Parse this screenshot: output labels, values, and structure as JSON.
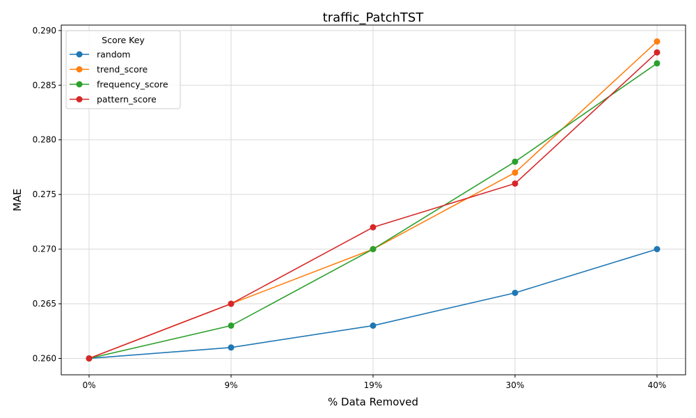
{
  "chart_data": {
    "type": "line",
    "title": "traffic_PatchTST",
    "xlabel": "% Data Removed",
    "ylabel": "MAE",
    "categories": [
      "0%",
      "9%",
      "19%",
      "30%",
      "40%"
    ],
    "ylim": [
      0.2585,
      0.2905
    ],
    "yticks": [
      "0.260",
      "0.265",
      "0.270",
      "0.275",
      "0.280",
      "0.285",
      "0.290"
    ],
    "ytick_values": [
      0.26,
      0.265,
      0.27,
      0.275,
      0.28,
      0.285,
      0.29
    ],
    "grid": true,
    "legend": {
      "title": "Score Key",
      "placement": "top-left"
    },
    "series": [
      {
        "name": "random",
        "color": "#1f77b4",
        "values": [
          0.26,
          0.261,
          0.263,
          0.266,
          0.27
        ]
      },
      {
        "name": "trend_score",
        "color": "#ff7f0e",
        "values": [
          0.26,
          0.265,
          0.27,
          0.277,
          0.289
        ]
      },
      {
        "name": "frequency_score",
        "color": "#2ca02c",
        "values": [
          0.26,
          0.263,
          0.27,
          0.278,
          0.287
        ]
      },
      {
        "name": "pattern_score",
        "color": "#d62728",
        "values": [
          0.26,
          0.265,
          0.272,
          0.276,
          0.288
        ]
      }
    ]
  }
}
